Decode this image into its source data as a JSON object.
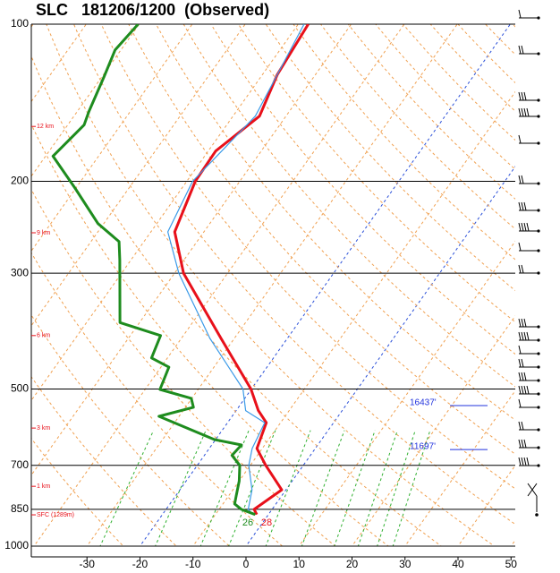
{
  "chart_data": {
    "type": "skewt",
    "title": "SLC   181206/1200  (Observed)",
    "xlim": [
      -40.5,
      50.8
    ],
    "ylim": [
      1000,
      100
    ],
    "log_y": true,
    "xticks": [
      -30,
      -20,
      -10,
      0,
      10,
      20,
      30,
      40,
      50
    ],
    "yticks": [
      100,
      200,
      300,
      500,
      700,
      850,
      1000
    ],
    "series": [
      {
        "color": "#e8101a",
        "pressure": [
          870,
          850,
          780,
          700,
          650,
          580,
          550,
          500,
          400,
          300,
          250,
          200,
          175,
          150,
          125,
          100
        ],
        "values": [
          -2.2,
          -3.4,
          -0.8,
          -7.1,
          -11.0,
          -12.7,
          -15.8,
          -20.1,
          -32.5,
          -48.3,
          -55.5,
          -58.4,
          -58.6,
          -55.0,
          -57.2,
          -58.1
        ]
      },
      {
        "color": "#3a9ae8",
        "pressure": [
          870,
          850,
          780,
          700,
          650,
          580,
          550,
          500,
          400,
          300,
          250,
          200,
          150,
          100
        ],
        "values": [
          -2.9,
          -4.5,
          -6.4,
          -10.3,
          -11.9,
          -13.0,
          -18.2,
          -21.6,
          -34.6,
          -49.2,
          -56.8,
          -58.9,
          -55.8,
          -58.9
        ]
      },
      {
        "color": "#1e8c1e",
        "pressure": [
          870,
          850,
          830,
          800,
          750,
          700,
          670,
          640,
          625,
          564,
          542,
          521,
          501,
          454,
          436,
          395,
          373,
          283,
          261,
          241,
          206,
          179,
          156,
          147,
          126,
          112,
          100
        ],
        "values": [
          -2.5,
          -5.8,
          -7.8,
          -8.6,
          -10.0,
          -12.0,
          -14.8,
          -14.4,
          -20.2,
          -33.8,
          -28.5,
          -30.1,
          -37.2,
          -38.5,
          -43.0,
          -44.3,
          -53.7,
          -62.1,
          -64.7,
          -71.1,
          -80.2,
          -88.6,
          -86.9,
          -87.8,
          -89.6,
          -91.1,
          -90.2
        ]
      }
    ],
    "heights": [
      {
        "label": "12 km",
        "pressure": 157
      },
      {
        "label": "9 km",
        "pressure": 251
      },
      {
        "label": "6 km",
        "pressure": 395
      },
      {
        "label": "3 km",
        "pressure": 594
      },
      {
        "label": "1 km",
        "pressure": 768
      },
      {
        "label": "SFC (1289m)",
        "pressure": 871
      }
    ],
    "levels": [
      {
        "label": "16437'",
        "pressure": 538,
        "color": "#2233dd"
      },
      {
        "label": "11697'",
        "pressure": 653,
        "color": "#2233dd"
      }
    ],
    "surface_labels": [
      {
        "text": "26",
        "color": "#1e8c1e"
      },
      {
        "text": "28",
        "color": "#e8101a"
      }
    ]
  }
}
